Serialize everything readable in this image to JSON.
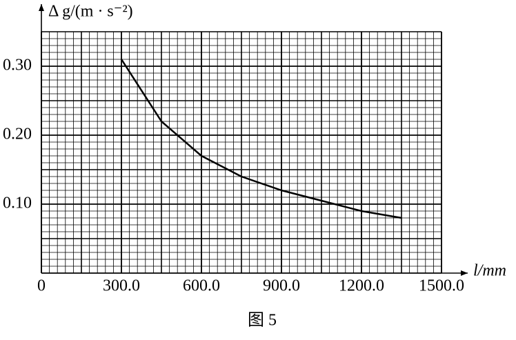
{
  "chart_data": {
    "type": "line",
    "y_label": "Δ g/(m · s⁻²)",
    "x_label": "l/mm",
    "caption": "图 5",
    "x": [
      300,
      450,
      600,
      750,
      900,
      1050,
      1200,
      1350
    ],
    "series": [
      {
        "color": "#000000",
        "values": [
          0.31,
          0.22,
          0.17,
          0.14,
          0.12,
          0.105,
          0.09,
          0.08
        ]
      }
    ],
    "xlim": [
      0,
      1500
    ],
    "xticks": [
      0,
      {
        "value": 300,
        "label": "300.0"
      },
      {
        "value": 600,
        "label": "600.0"
      },
      {
        "value": 900,
        "label": "900.0"
      },
      {
        "value": 1200,
        "label": "1200.0"
      },
      {
        "value": 1500,
        "label": "1500.0"
      }
    ],
    "ylim": [
      0,
      0.35
    ],
    "yticks": [
      {
        "value": 0.1,
        "label": "0.10"
      },
      {
        "value": 0.2,
        "label": "0.20"
      },
      {
        "value": 0.3,
        "label": "0.30"
      }
    ],
    "grid": true
  }
}
